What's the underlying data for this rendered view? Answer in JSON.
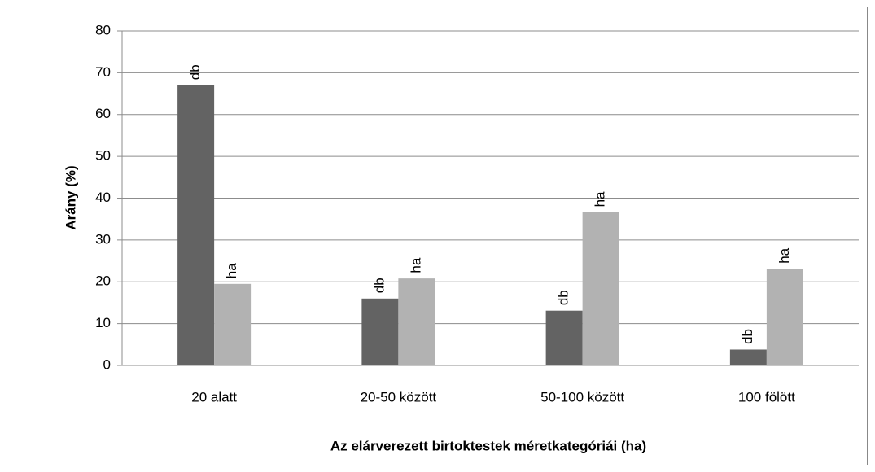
{
  "chart_data": {
    "type": "bar",
    "categories": [
      "20 alatt",
      "20-50 között",
      "50-100 között",
      "100 fölött"
    ],
    "series": [
      {
        "name": "db",
        "color": "#636363",
        "values": [
          67,
          16,
          13.1,
          3.8
        ]
      },
      {
        "name": "ha",
        "color": "#b2b2b2",
        "values": [
          19.5,
          20.8,
          36.6,
          23.1
        ]
      }
    ],
    "ylabel": "Arány (%)",
    "xlabel": "Az elárverezett birtoktestek méretkategóriái (ha)",
    "ylim": [
      0,
      80
    ],
    "yticks": [
      0,
      10,
      20,
      30,
      40,
      50,
      60,
      70,
      80
    ],
    "grid": true
  }
}
